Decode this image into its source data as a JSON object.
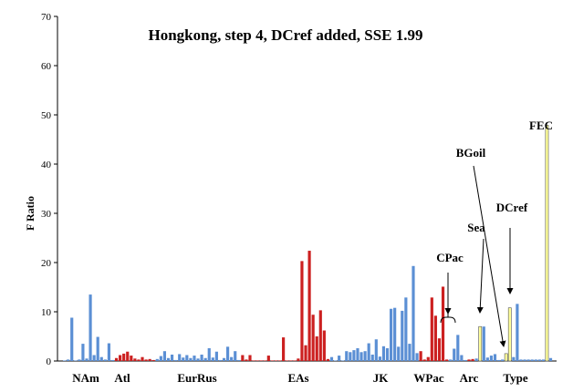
{
  "chart_data": {
    "type": "bar",
    "title": "Hongkong, step 4, DCref added, SSE 1.99",
    "xlabel": "",
    "ylabel": "F Ratio",
    "ylim": [
      0,
      70
    ],
    "yticks": [
      0,
      10,
      20,
      30,
      40,
      50,
      60,
      70
    ],
    "grid": false,
    "legend": "none",
    "colors": {
      "blue": "#5b8fd4",
      "red": "#cc2020",
      "yellow": "#ffff9a",
      "bar_edge": "#333333"
    },
    "group_labels": [
      "NAm",
      "Atl",
      "EurRus",
      "EAs",
      "JK",
      "WPac",
      "Arc",
      "Type"
    ],
    "annotations": [
      "FEC",
      "BGoil",
      "DCref",
      "Sea",
      "CPac"
    ],
    "series": [
      {
        "color": "blue",
        "values": [
          0,
          0.3,
          8.8,
          0.1,
          0.3,
          3.5,
          0.5,
          13.5,
          1.2,
          4.9,
          0.8,
          0.3,
          3.6,
          0.2
        ]
      },
      {
        "color": "red",
        "values": [
          0.6,
          1.2,
          1.5,
          1.9,
          1.1,
          0.5,
          0.3,
          0.8,
          0.3,
          0.4,
          0.2
        ]
      },
      {
        "color": "blue",
        "values": [
          0.4,
          1.0,
          2.0,
          0.6,
          1.3,
          0.2,
          1.4,
          0.7,
          1.2,
          0.6,
          1.1,
          0.5,
          1.3,
          0.6,
          2.6,
          0.7,
          1.9,
          0.2,
          0.6,
          2.9,
          0.8,
          2.0,
          0.2
        ]
      },
      {
        "color": "red",
        "values": [
          1.2,
          0.3,
          1.2,
          0,
          0,
          0,
          0,
          1.1,
          0,
          0,
          0,
          4.8,
          0,
          0,
          0,
          0.5,
          20.3,
          3.2,
          22.4,
          9.4,
          5.0,
          10.3,
          6.2,
          0.4
        ]
      },
      {
        "color": "blue",
        "values": [
          0.8,
          0,
          1.1,
          0,
          2.0,
          1.8,
          2.2,
          2.6,
          1.8,
          2.0,
          3.6,
          1.3,
          4.4,
          0.9,
          3.0,
          2.6,
          10.6,
          10.8,
          2.9,
          10.2,
          12.9,
          3.5,
          19.3,
          1.6
        ]
      },
      {
        "color": "red",
        "values": [
          2.0,
          0.3,
          0.8,
          12.9,
          9.2,
          4.6,
          15.1,
          0.3
        ]
      },
      {
        "color": "blue",
        "values": [
          0.3,
          2.5,
          5.3,
          1.2,
          0.2
        ]
      },
      {
        "color": "red",
        "values": [
          0.3,
          0.4
        ]
      },
      {
        "color": "blue",
        "values": [
          0.5
        ]
      },
      {
        "color": "yellow",
        "values": [
          7.0
        ]
      },
      {
        "color": "blue",
        "values": [
          7.0,
          0.7,
          1.1,
          1.4,
          0.2,
          0.3
        ]
      },
      {
        "color": "yellow",
        "values": [
          1.5
        ]
      },
      {
        "color": "yellow",
        "values": [
          10.8
        ]
      },
      {
        "color": "blue",
        "values": [
          0.8,
          11.6,
          0.3,
          0.3,
          0.3,
          0.3,
          0.3,
          0.3,
          0.3
        ]
      },
      {
        "color": "yellow",
        "values": [
          47.9
        ]
      },
      {
        "color": "blue",
        "values": [
          0.6
        ]
      }
    ]
  }
}
